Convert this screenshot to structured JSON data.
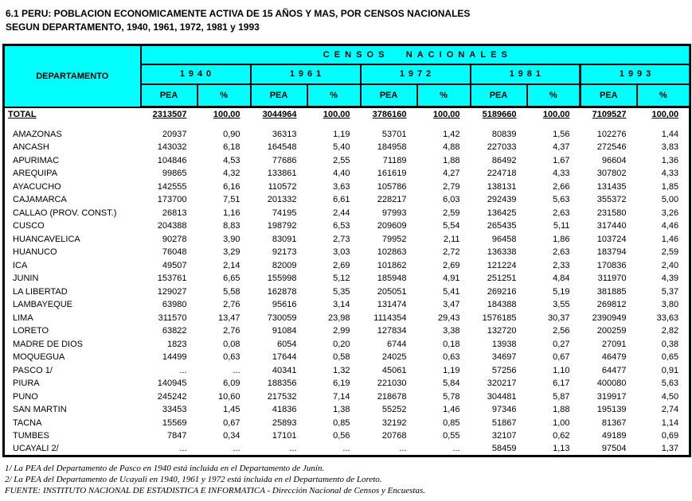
{
  "title": {
    "line1": "6.1 PERU: POBLACION ECONOMICAMENTE ACTIVA DE 15 AÑOS Y MAS, POR CENSOS NACIONALES",
    "line2": "SEGUN DEPARTAMENTO, 1940, 1961, 1972, 1981 y 1993"
  },
  "colors": {
    "header_bg": "#00FFFF",
    "border": "#000000",
    "text": "#000000"
  },
  "table": {
    "department_header": "DEPARTAMENTO",
    "censos_header": "CENSOS NACIONALES",
    "years": [
      "1940",
      "1961",
      "1972",
      "1981",
      "1993"
    ],
    "pea_label": "PEA",
    "pct_label": "%",
    "total_row": {
      "label": "TOTAL",
      "values": [
        "2313507",
        "100,00",
        "3044964",
        "100,00",
        "3786160",
        "100,00",
        "5189660",
        "100,00",
        "7109527",
        "100,00"
      ]
    },
    "rows": [
      {
        "label": "AMAZONAS",
        "values": [
          "20937",
          "0,90",
          "36313",
          "1,19",
          "53701",
          "1,42",
          "80839",
          "1,56",
          "102276",
          "1,44"
        ]
      },
      {
        "label": "ANCASH",
        "values": [
          "143032",
          "6,18",
          "164548",
          "5,40",
          "184958",
          "4,88",
          "227033",
          "4,37",
          "272546",
          "3,83"
        ]
      },
      {
        "label": "APURIMAC",
        "values": [
          "104846",
          "4,53",
          "77686",
          "2,55",
          "71189",
          "1,88",
          "86492",
          "1,67",
          "96604",
          "1,36"
        ]
      },
      {
        "label": "AREQUIPA",
        "values": [
          "99865",
          "4,32",
          "133861",
          "4,40",
          "161619",
          "4,27",
          "224718",
          "4,33",
          "307802",
          "4,33"
        ]
      },
      {
        "label": "AYACUCHO",
        "values": [
          "142555",
          "6,16",
          "110572",
          "3,63",
          "105786",
          "2,79",
          "138131",
          "2,66",
          "131435",
          "1,85"
        ]
      },
      {
        "label": "CAJAMARCA",
        "values": [
          "173700",
          "7,51",
          "201332",
          "6,61",
          "228217",
          "6,03",
          "292439",
          "5,63",
          "355372",
          "5,00"
        ]
      },
      {
        "label": "CALLAO (PROV. CONST.)",
        "values": [
          "26813",
          "1,16",
          "74195",
          "2,44",
          "97993",
          "2,59",
          "136425",
          "2,63",
          "231580",
          "3,26"
        ]
      },
      {
        "label": "CUSCO",
        "values": [
          "204388",
          "8,83",
          "198792",
          "6,53",
          "209609",
          "5,54",
          "265435",
          "5,11",
          "317440",
          "4,46"
        ]
      },
      {
        "label": "HUANCAVELICA",
        "values": [
          "90278",
          "3,90",
          "83091",
          "2,73",
          "79952",
          "2,11",
          "96458",
          "1,86",
          "103724",
          "1,46"
        ]
      },
      {
        "label": "HUANUCO",
        "values": [
          "76048",
          "3,29",
          "92173",
          "3,03",
          "102863",
          "2,72",
          "136338",
          "2,63",
          "183794",
          "2,59"
        ]
      },
      {
        "label": "ICA",
        "values": [
          "49507",
          "2,14",
          "82009",
          "2,69",
          "101862",
          "2,69",
          "121224",
          "2,33",
          "170836",
          "2,40"
        ]
      },
      {
        "label": "JUNIN",
        "values": [
          "153761",
          "6,65",
          "155998",
          "5,12",
          "185948",
          "4,91",
          "251251",
          "4,84",
          "311970",
          "4,39"
        ]
      },
      {
        "label": "LA LIBERTAD",
        "values": [
          "129027",
          "5,58",
          "162878",
          "5,35",
          "205051",
          "5,41",
          "269216",
          "5,19",
          "381885",
          "5,37"
        ]
      },
      {
        "label": "LAMBAYEQUE",
        "values": [
          "63980",
          "2,76",
          "95616",
          "3,14",
          "131474",
          "3,47",
          "184388",
          "3,55",
          "269812",
          "3,80"
        ]
      },
      {
        "label": "LIMA",
        "values": [
          "311570",
          "13,47",
          "730059",
          "23,98",
          "1114354",
          "29,43",
          "1576185",
          "30,37",
          "2390949",
          "33,63"
        ]
      },
      {
        "label": "LORETO",
        "values": [
          "63822",
          "2,76",
          "91084",
          "2,99",
          "127834",
          "3,38",
          "132720",
          "2,56",
          "200259",
          "2,82"
        ]
      },
      {
        "label": "MADRE DE DIOS",
        "values": [
          "1823",
          "0,08",
          "6054",
          "0,20",
          "6744",
          "0,18",
          "13938",
          "0,27",
          "27091",
          "0,38"
        ]
      },
      {
        "label": "MOQUEGUA",
        "values": [
          "14499",
          "0,63",
          "17644",
          "0,58",
          "24025",
          "0,63",
          "34697",
          "0,67",
          "46479",
          "0,65"
        ]
      },
      {
        "label": "PASCO 1/",
        "values": [
          "...",
          "...",
          "40341",
          "1,32",
          "45061",
          "1,19",
          "57256",
          "1,10",
          "64477",
          "0,91"
        ]
      },
      {
        "label": "PIURA",
        "values": [
          "140945",
          "6,09",
          "188356",
          "6,19",
          "221030",
          "5,84",
          "320217",
          "6,17",
          "400080",
          "5,63"
        ]
      },
      {
        "label": "PUNO",
        "values": [
          "245242",
          "10,60",
          "217532",
          "7,14",
          "218678",
          "5,78",
          "304481",
          "5,87",
          "319917",
          "4,50"
        ]
      },
      {
        "label": "SAN MARTIN",
        "values": [
          "33453",
          "1,45",
          "41836",
          "1,38",
          "55252",
          "1,46",
          "97346",
          "1,88",
          "195139",
          "2,74"
        ]
      },
      {
        "label": "TACNA",
        "values": [
          "15569",
          "0,67",
          "25893",
          "0,85",
          "32192",
          "0,85",
          "51867",
          "1,00",
          "81367",
          "1,14"
        ]
      },
      {
        "label": "TUMBES",
        "values": [
          "7847",
          "0,34",
          "17101",
          "0,56",
          "20768",
          "0,55",
          "32107",
          "0,62",
          "49189",
          "0,69"
        ]
      },
      {
        "label": "UCAYALI 2/",
        "values": [
          "...",
          "...",
          "...",
          "...",
          "...",
          "...",
          "58459",
          "1,13",
          "97504",
          "1,37"
        ]
      }
    ]
  },
  "footnotes": [
    "1/ La PEA del Departamento de Pasco en 1940 está incluida en el Departamento de Junín.",
    "2/ La PEA del Departamento de Ucayali en 1940, 1961 y 1972 está incluida en el Departamento de Loreto.",
    "FUENTE: INSTITUTO NACIONAL DE ESTADISTICA E INFORMATICA - Dirección Nacional de Censos y Encuestas."
  ]
}
